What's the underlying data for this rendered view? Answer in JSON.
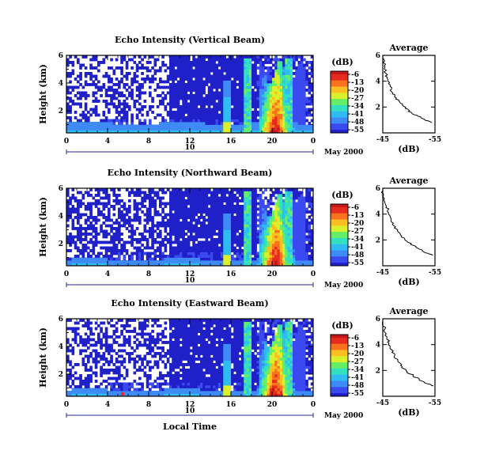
{
  "colors": {
    "palette": [
      "#2020c8",
      "#3a4af0",
      "#3f8bf5",
      "#2fbcf2",
      "#33e0c0",
      "#66ee66",
      "#d9f02a",
      "#fcbf22",
      "#f8731e",
      "#e62a1f",
      "#c4161c"
    ],
    "dark_point": "#0a0a80"
  },
  "chart_data": [
    {
      "type": "heatmap",
      "title": "Echo Intensity (Vertical Beam)",
      "ylabel": "Height (km)",
      "x_ticks": [
        "0",
        "4",
        "8",
        "12",
        "16",
        "20",
        "0"
      ],
      "y_ticks": [
        "2",
        "4",
        "6"
      ],
      "date_label": "10",
      "date_suffix": "May 2000",
      "xlim": [
        0,
        24
      ],
      "ylim": [
        0.4,
        6
      ],
      "colorbar": {
        "unit": "(dB)",
        "labels": [
          "-6",
          "-13",
          "-20",
          "-27",
          "-34",
          "-41",
          "-48",
          "-55"
        ],
        "range": [
          -6,
          -55
        ]
      },
      "profile": {
        "title": "Average",
        "xlabel": "(dB)",
        "x_ticks": [
          "-45",
          "-55"
        ],
        "y_ticks": [
          "2",
          "4",
          "6"
        ],
        "points": [
          [
            -45.0,
            5.8
          ],
          [
            -45.3,
            5.2
          ],
          [
            -45.6,
            4.6
          ],
          [
            -46.0,
            4.1
          ],
          [
            -46.4,
            3.6
          ],
          [
            -46.9,
            3.1
          ],
          [
            -47.6,
            2.7
          ],
          [
            -48.4,
            2.3
          ],
          [
            -49.3,
            1.9
          ],
          [
            -50.4,
            1.6
          ],
          [
            -51.7,
            1.3
          ],
          [
            -53.1,
            1.0
          ],
          [
            -54.4,
            0.8
          ]
        ]
      }
    },
    {
      "type": "heatmap",
      "title": "Echo Intensity (Northward Beam)",
      "ylabel": "Height (km)",
      "x_ticks": [
        "0",
        "4",
        "8",
        "12",
        "16",
        "20",
        "0"
      ],
      "y_ticks": [
        "2",
        "4",
        "6"
      ],
      "date_label": "10",
      "date_suffix": "May 2000",
      "xlim": [
        0,
        24
      ],
      "ylim": [
        0.4,
        6
      ],
      "colorbar": {
        "unit": "(dB)",
        "labels": [
          "-6",
          "-13",
          "-20",
          "-27",
          "-34",
          "-41",
          "-48",
          "-55"
        ],
        "range": [
          -6,
          -55
        ]
      },
      "profile": {
        "title": "Average",
        "xlabel": "(dB)",
        "x_ticks": [
          "-45",
          "-55"
        ],
        "y_ticks": [
          "2",
          "4",
          "6"
        ],
        "points": [
          [
            -45.0,
            5.8
          ],
          [
            -45.3,
            5.2
          ],
          [
            -45.7,
            4.6
          ],
          [
            -46.1,
            4.1
          ],
          [
            -46.6,
            3.6
          ],
          [
            -47.1,
            3.1
          ],
          [
            -47.8,
            2.7
          ],
          [
            -48.6,
            2.3
          ],
          [
            -49.6,
            1.9
          ],
          [
            -50.7,
            1.6
          ],
          [
            -51.9,
            1.3
          ],
          [
            -53.2,
            1.0
          ],
          [
            -54.6,
            0.8
          ]
        ]
      }
    },
    {
      "type": "heatmap",
      "title": "Echo Intensity (Eastward Beam)",
      "ylabel": "Height (km)",
      "xlabel": "Local Time",
      "x_ticks": [
        "0",
        "4",
        "8",
        "12",
        "16",
        "20",
        "0"
      ],
      "y_ticks": [
        "2",
        "4",
        "6"
      ],
      "date_label": "10",
      "date_suffix": "May 2000",
      "xlim": [
        0,
        24
      ],
      "ylim": [
        0.4,
        6
      ],
      "colorbar": {
        "unit": "(dB)",
        "labels": [
          "-6",
          "-13",
          "-20",
          "-27",
          "-34",
          "-41",
          "-48",
          "-55"
        ],
        "range": [
          -6,
          -55
        ]
      },
      "profile": {
        "title": "Average",
        "xlabel": "(dB)",
        "x_ticks": [
          "-45",
          "-55"
        ],
        "y_ticks": [
          "2",
          "4",
          "6"
        ],
        "points": [
          [
            -45.0,
            5.8
          ],
          [
            -45.4,
            5.2
          ],
          [
            -45.8,
            4.6
          ],
          [
            -46.2,
            4.1
          ],
          [
            -46.7,
            3.6
          ],
          [
            -47.2,
            3.1
          ],
          [
            -47.9,
            2.7
          ],
          [
            -48.7,
            2.3
          ],
          [
            -49.7,
            1.9
          ],
          [
            -50.8,
            1.6
          ],
          [
            -52.0,
            1.3
          ],
          [
            -53.3,
            1.0
          ],
          [
            -54.7,
            0.8
          ]
        ]
      }
    }
  ]
}
